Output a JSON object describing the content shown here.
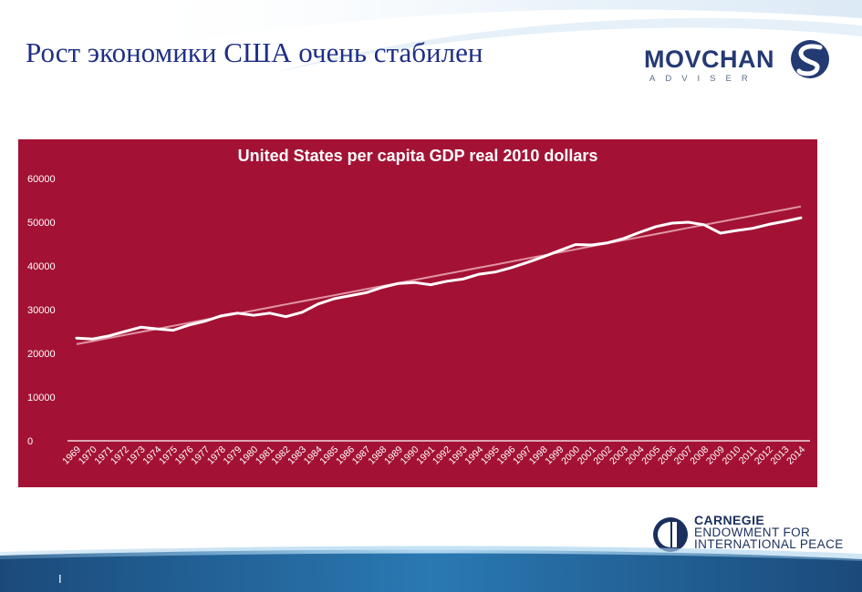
{
  "slide": {
    "title": "Рост экономики США очень стабилен",
    "page_marker": "I"
  },
  "logos": {
    "movchan_word": "MOVCHAN",
    "movchan_sub": "ADVISER",
    "carnegie_line1": "CARNEGIE",
    "carnegie_line2": "ENDOWMENT FOR",
    "carnegie_line3": "INTERNATIONAL PEACE"
  },
  "colors": {
    "title": "#1f2f86",
    "chart_background": "#a31234",
    "series_line": "#ffffff",
    "trend_line": "#e8a3b3",
    "navy": "#1a2f5e"
  },
  "chart_data": {
    "type": "line",
    "title": "United States per capita GDP real 2010 dollars",
    "xlabel": "",
    "ylabel": "",
    "ylim": [
      0,
      60000
    ],
    "yticks": [
      0,
      10000,
      20000,
      30000,
      40000,
      50000,
      60000
    ],
    "grid": false,
    "legend": "none",
    "categories": [
      "1969",
      "1970",
      "1971",
      "1972",
      "1973",
      "1974",
      "1975",
      "1976",
      "1977",
      "1978",
      "1979",
      "1980",
      "1981",
      "1982",
      "1983",
      "1984",
      "1985",
      "1986",
      "1987",
      "1988",
      "1989",
      "1990",
      "1991",
      "1992",
      "1993",
      "1994",
      "1995",
      "1996",
      "1997",
      "1998",
      "1999",
      "2000",
      "2001",
      "2002",
      "2003",
      "2004",
      "2005",
      "2006",
      "2007",
      "2008",
      "2009",
      "2010",
      "2011",
      "2012",
      "2013",
      "2014"
    ],
    "series": [
      {
        "kind": "data",
        "values": [
          23500,
          23300,
          24000,
          25000,
          26000,
          25600,
          25300,
          26500,
          27400,
          28600,
          29200,
          28700,
          29200,
          28400,
          29400,
          31300,
          32500,
          33200,
          33900,
          35100,
          36000,
          36200,
          35700,
          36500,
          37000,
          38100,
          38600,
          39600,
          40800,
          42100,
          43500,
          44900,
          44800,
          45300,
          46300,
          47700,
          49000,
          49800,
          50000,
          49400,
          47500,
          48100,
          48600,
          49500,
          50200,
          51000
        ]
      },
      {
        "kind": "trend",
        "values": [
          22100,
          22800,
          23500,
          24200,
          24900,
          25600,
          26300,
          27000,
          27700,
          28400,
          29100,
          29800,
          30500,
          31200,
          31900,
          32600,
          33300,
          34000,
          34700,
          35400,
          36100,
          36800,
          37500,
          38200,
          38900,
          39600,
          40300,
          41000,
          41700,
          42400,
          43100,
          43800,
          44500,
          45200,
          45900,
          46600,
          47300,
          48000,
          48700,
          49400,
          50100,
          50800,
          51500,
          52200,
          52900,
          53600
        ]
      }
    ]
  }
}
